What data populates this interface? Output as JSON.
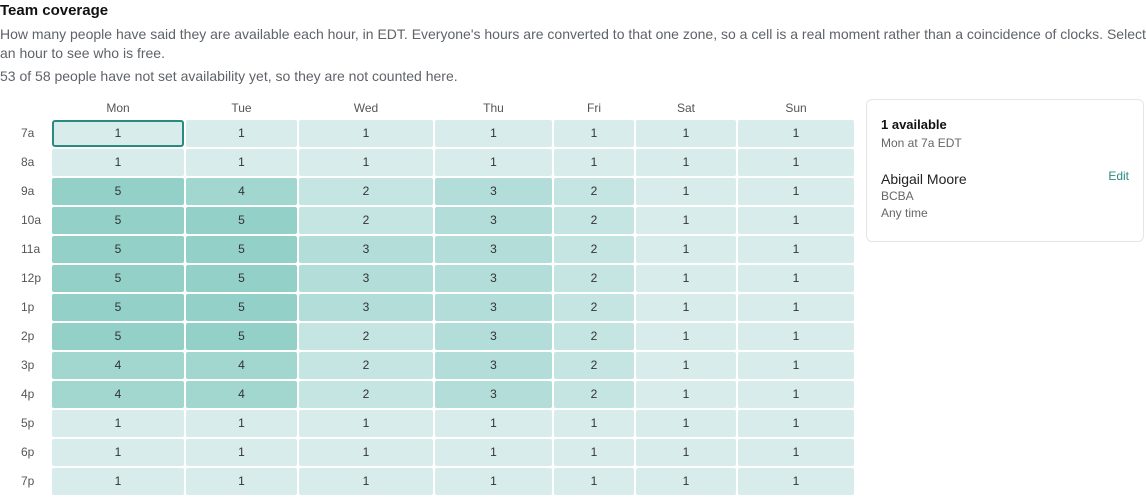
{
  "header": {
    "title": "Team coverage",
    "description": "How many people have said they are available each hour, in EDT. Everyone's hours are converted to that one zone, so a cell is a real moment rather than a coincidence of clocks. Select an hour to see who is free.",
    "note": "53 of 58 people have not set availability yet, so they are not counted here."
  },
  "days": [
    "Mon",
    "Tue",
    "Wed",
    "Thu",
    "Fri",
    "Sat",
    "Sun"
  ],
  "hours": [
    "7a",
    "8a",
    "9a",
    "10a",
    "11a",
    "12p",
    "1p",
    "2p",
    "3p",
    "4p",
    "5p",
    "6p",
    "7p"
  ],
  "counts": [
    [
      1,
      1,
      1,
      1,
      1,
      1,
      1
    ],
    [
      1,
      1,
      1,
      1,
      1,
      1,
      1
    ],
    [
      5,
      4,
      2,
      3,
      2,
      1,
      1
    ],
    [
      5,
      5,
      2,
      3,
      2,
      1,
      1
    ],
    [
      5,
      5,
      3,
      3,
      2,
      1,
      1
    ],
    [
      5,
      5,
      3,
      3,
      2,
      1,
      1
    ],
    [
      5,
      5,
      3,
      3,
      2,
      1,
      1
    ],
    [
      5,
      5,
      2,
      3,
      2,
      1,
      1
    ],
    [
      4,
      4,
      2,
      3,
      2,
      1,
      1
    ],
    [
      4,
      4,
      2,
      3,
      2,
      1,
      1
    ],
    [
      1,
      1,
      1,
      1,
      1,
      1,
      1
    ],
    [
      1,
      1,
      1,
      1,
      1,
      1,
      1
    ],
    [
      1,
      1,
      1,
      1,
      1,
      1,
      1
    ]
  ],
  "selected": {
    "day": "Mon",
    "hour": "7a"
  },
  "panel": {
    "count_label": "1 available",
    "when_label": "Mon at 7a EDT",
    "person": {
      "name": "Abigail Moore",
      "role": "BCBA",
      "availability": "Any time",
      "edit_label": "Edit"
    }
  },
  "colors": {
    "accent": "#2a8a80",
    "level_1": "#d8edeb",
    "level_2": "#c4e5e1",
    "level_3": "#b2ddd8",
    "level_4": "#a2d7d0",
    "level_5": "#92d0c8"
  }
}
